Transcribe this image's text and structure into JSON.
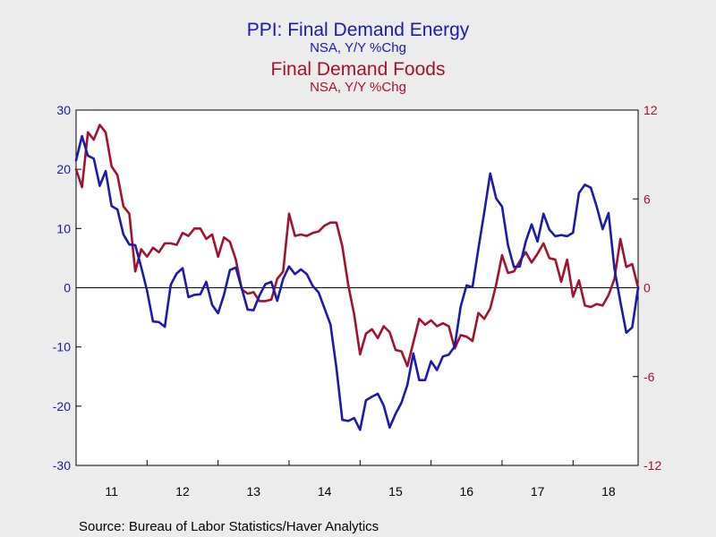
{
  "titles": {
    "energy_title": "PPI: Final Demand Energy",
    "energy_subtitle": "NSA, Y/Y %Chg",
    "foods_title": "Final Demand Foods",
    "foods_subtitle": "NSA, Y/Y %Chg"
  },
  "source": "Source:  Bureau of Labor Statistics/Haver Analytics",
  "colors": {
    "energy": "#1a1aaf",
    "foods": "#a3122c",
    "plot_bg": "#ffffff",
    "page_bg": "#ececec"
  },
  "chart_data": {
    "type": "line",
    "title": "PPI: Final Demand Energy / Final Demand Foods",
    "subtitle": "NSA, Y/Y %Chg",
    "x": [
      2011.0,
      2011.0833,
      2011.1667,
      2011.25,
      2011.3333,
      2011.4167,
      2011.5,
      2011.5833,
      2011.6667,
      2011.75,
      2011.8333,
      2011.9167,
      2012.0,
      2012.0833,
      2012.1667,
      2012.25,
      2012.3333,
      2012.4167,
      2012.5,
      2012.5833,
      2012.6667,
      2012.75,
      2012.8333,
      2012.9167,
      2013.0,
      2013.0833,
      2013.1667,
      2013.25,
      2013.3333,
      2013.4167,
      2013.5,
      2013.5833,
      2013.6667,
      2013.75,
      2013.8333,
      2013.9167,
      2014.0,
      2014.0833,
      2014.1667,
      2014.25,
      2014.3333,
      2014.4167,
      2014.5,
      2014.5833,
      2014.6667,
      2014.75,
      2014.8333,
      2014.9167,
      2015.0,
      2015.0833,
      2015.1667,
      2015.25,
      2015.3333,
      2015.4167,
      2015.5,
      2015.5833,
      2015.6667,
      2015.75,
      2015.8333,
      2015.9167,
      2016.0,
      2016.0833,
      2016.1667,
      2016.25,
      2016.3333,
      2016.4167,
      2016.5,
      2016.5833,
      2016.6667,
      2016.75,
      2016.8333,
      2016.9167,
      2017.0,
      2017.0833,
      2017.1667,
      2017.25,
      2017.3333,
      2017.4167,
      2017.5,
      2017.5833,
      2017.6667,
      2017.75,
      2017.8333,
      2017.9167,
      2018.0,
      2018.0833,
      2018.1667,
      2018.25,
      2018.3333,
      2018.4167,
      2018.5,
      2018.5833,
      2018.6667,
      2018.75,
      2018.8333,
      2018.9167
    ],
    "x_ticks": [
      {
        "value": 2011.5,
        "label": "11"
      },
      {
        "value": 2012.5,
        "label": "12"
      },
      {
        "value": 2013.5,
        "label": "13"
      },
      {
        "value": 2014.5,
        "label": "14"
      },
      {
        "value": 2015.5,
        "label": "15"
      },
      {
        "value": 2016.5,
        "label": "16"
      },
      {
        "value": 2017.5,
        "label": "17"
      },
      {
        "value": 2018.5,
        "label": "18"
      }
    ],
    "xlim": [
      2011.0,
      2018.9167
    ],
    "year_boundaries": [
      2012,
      2013,
      2014,
      2015,
      2016,
      2017,
      2018
    ],
    "series": [
      {
        "name": "PPI: Final Demand Energy",
        "axis": "left",
        "values": [
          21.5,
          25.6,
          22.3,
          21.8,
          17.2,
          19.7,
          13.8,
          13.2,
          9.0,
          7.3,
          7.2,
          3.5,
          -0.5,
          -5.7,
          -5.8,
          -6.6,
          0.5,
          2.4,
          3.3,
          -1.6,
          -1.2,
          -1.1,
          1.0,
          -2.9,
          -4.3,
          -1.2,
          3.0,
          3.4,
          -0.1,
          -3.7,
          -3.8,
          -1.3,
          0.6,
          1.0,
          -2.2,
          1.5,
          3.6,
          2.3,
          3.1,
          2.3,
          0.3,
          -0.8,
          -3.5,
          -6.2,
          -13.5,
          -22.3,
          -22.5,
          -22.0,
          -24.0,
          -19.0,
          -18.4,
          -17.9,
          -19.9,
          -23.6,
          -21.3,
          -19.4,
          -16.4,
          -11.1,
          -15.6,
          -15.6,
          -12.4,
          -13.9,
          -11.6,
          -11.3,
          -9.9,
          -3.2,
          0.4,
          0.1,
          6.6,
          12.8,
          19.3,
          15.1,
          13.7,
          7.2,
          3.5,
          3.6,
          7.8,
          10.7,
          7.8,
          12.5,
          9.8,
          8.7,
          8.9,
          8.7,
          9.3,
          16.0,
          17.4,
          16.9,
          13.7,
          9.9,
          12.6,
          3.2,
          -2.4,
          -7.6,
          -6.7,
          0.0
        ]
      },
      {
        "name": "Final Demand Foods",
        "axis": "right",
        "values": [
          8.0,
          6.8,
          10.5,
          10.0,
          11.0,
          10.5,
          8.2,
          7.6,
          5.5,
          5.0,
          1.1,
          2.6,
          2.1,
          2.7,
          2.4,
          3.0,
          3.0,
          2.9,
          3.7,
          3.5,
          4.0,
          4.0,
          3.3,
          3.6,
          2.1,
          3.4,
          3.1,
          1.9,
          -0.1,
          -0.4,
          -0.3,
          -0.9,
          -0.9,
          -0.8,
          0.6,
          1.1,
          5.0,
          3.5,
          3.6,
          3.5,
          3.7,
          3.8,
          4.2,
          4.4,
          4.4,
          2.8,
          0.2,
          -1.8,
          -4.5,
          -3.1,
          -2.8,
          -3.4,
          -2.6,
          -3.0,
          -4.2,
          -4.3,
          -5.3,
          -3.7,
          -2.1,
          -2.5,
          -2.2,
          -2.6,
          -2.4,
          -2.6,
          -4.1,
          -3.2,
          -3.3,
          -3.6,
          -1.7,
          -2.1,
          -1.4,
          0.2,
          2.2,
          1.0,
          1.1,
          1.8,
          2.4,
          1.7,
          2.3,
          3.0,
          2.0,
          1.9,
          0.4,
          1.9,
          -0.6,
          0.5,
          -1.2,
          -1.3,
          -1.1,
          -1.2,
          -0.5,
          0.6,
          3.3,
          1.4,
          1.6,
          0.0
        ]
      }
    ],
    "left_axis": {
      "ylim": [
        -30,
        30
      ],
      "ticks": [
        -30,
        -20,
        -10,
        0,
        10,
        20,
        30
      ],
      "tick_labels": [
        "-30",
        "-20",
        "-10",
        "0",
        "10",
        "20",
        "30"
      ]
    },
    "right_axis": {
      "ylim": [
        -12,
        12
      ],
      "ticks": [
        -12,
        -6,
        0,
        6,
        12
      ],
      "tick_labels": [
        "-12",
        "-6",
        "0",
        "6",
        "12"
      ]
    },
    "xlabel": "",
    "ylabel": "",
    "grid": false,
    "zero_line": true,
    "legend": "none"
  }
}
